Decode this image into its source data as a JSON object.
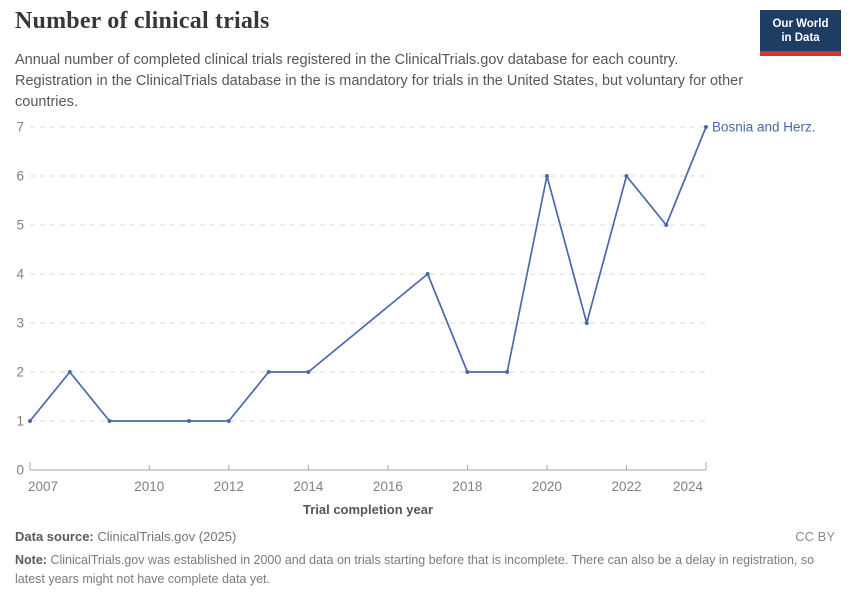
{
  "header": {
    "title": "Number of clinical trials",
    "subtitle": "Annual number of completed clinical trials registered in the ClinicalTrials.gov database for each country. Registration in the ClinicalTrials database in the is mandatory for trials in the United States, but voluntary for other countries.",
    "logo": {
      "line1": "Our World",
      "line2": "in Data"
    }
  },
  "chart_data": {
    "type": "line",
    "title": "Number of clinical trials",
    "xlabel": "Trial completion year",
    "ylabel": "",
    "xlim": [
      2007,
      2024
    ],
    "ylim": [
      0,
      7
    ],
    "x_ticks": [
      2007,
      2010,
      2012,
      2014,
      2016,
      2018,
      2020,
      2022,
      2024
    ],
    "y_ticks": [
      0,
      1,
      2,
      3,
      4,
      5,
      6,
      7
    ],
    "grid": "horizontal-dashed",
    "legend_position": "end-of-line-label",
    "series": [
      {
        "name": "Bosnia and Herz.",
        "color": "#4b69aa",
        "points": [
          {
            "x": 2007,
            "y": 1
          },
          {
            "x": 2008,
            "y": 2
          },
          {
            "x": 2009,
            "y": 1
          },
          {
            "x": 2011,
            "y": 1
          },
          {
            "x": 2012,
            "y": 1
          },
          {
            "x": 2013,
            "y": 2
          },
          {
            "x": 2014,
            "y": 2
          },
          {
            "x": 2017,
            "y": 4
          },
          {
            "x": 2018,
            "y": 2
          },
          {
            "x": 2019,
            "y": 2
          },
          {
            "x": 2020,
            "y": 6
          },
          {
            "x": 2021,
            "y": 3
          },
          {
            "x": 2022,
            "y": 6
          },
          {
            "x": 2023,
            "y": 5
          },
          {
            "x": 2024,
            "y": 7
          }
        ]
      }
    ]
  },
  "colors": {
    "line": "#4b69aa",
    "grid": "#d9d9d9",
    "axis": "#a5a5a5",
    "tick_text": "#818181",
    "axis_title": "#565656",
    "logo_bg": "#1d3d63",
    "logo_red": "#d8352e"
  },
  "footer": {
    "data_source_label": "Data source:",
    "data_source_value": "ClinicalTrials.gov (2025)",
    "license": "CC BY",
    "note_label": "Note:",
    "note_text": "ClinicalTrials.gov was established in 2000 and data on trials starting before that is incomplete. There can also be a delay in registration, so latest years might not have complete data yet."
  }
}
